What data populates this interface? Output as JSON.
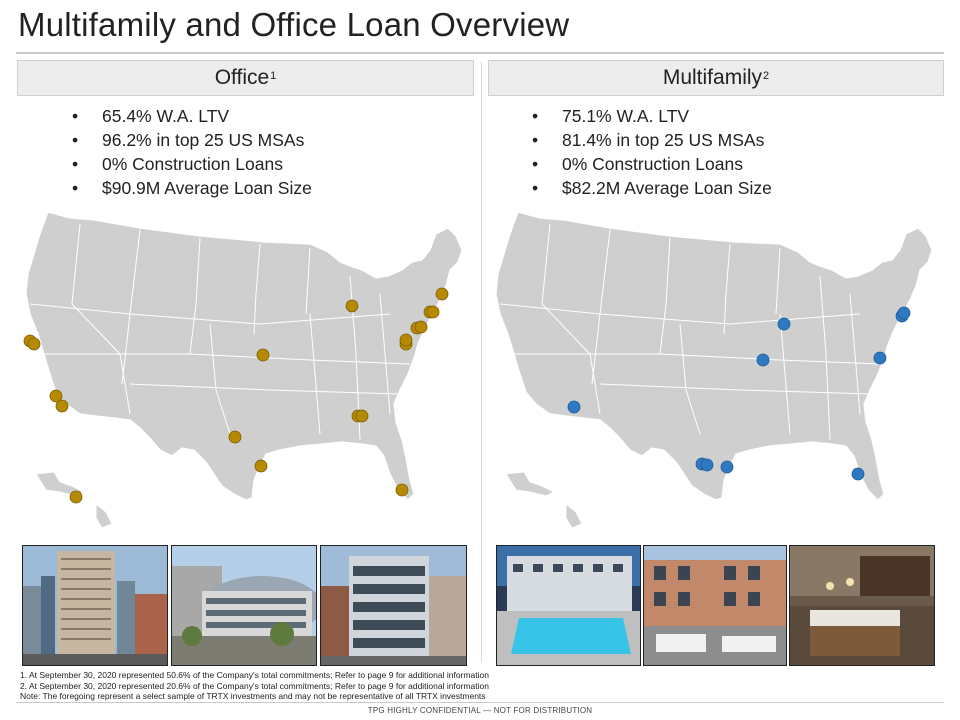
{
  "title": "Multifamily and Office Loan Overview",
  "office": {
    "header": "Office",
    "header_marker": "1",
    "bullets": [
      "65.4% W.A. LTV",
      "96.2% in top 25 US MSAs",
      "0% Construction Loans",
      "$90.9M Average Loan Size"
    ],
    "marker_color": "#b58a00"
  },
  "multifamily": {
    "header": "Multifamily",
    "header_marker": "2",
    "bullets": [
      "75.1% W.A. LTV",
      "81.4% in top 25 US MSAs",
      "0% Construction Loans",
      "$82.2M Average Loan Size"
    ],
    "marker_color": "#2f78c2"
  },
  "footnotes": [
    "1. At September 30, 2020 represented 50.6% of the Company's total commitments; Refer to page 9 for additional information",
    "2. At September 30, 2020 represented 20.6% of the Company's total commitments; Refer to page 9 for additional information",
    "Note: The foregoing represent a select sample of TRTX investments and may not be representative of all TRTX investments"
  ],
  "confidential": "TPG HIGHLY CONFIDENTIAL — NOT FOR DISTRIBUTION",
  "colors": {
    "map_land": "#cfcfcf",
    "map_border": "#ffffff",
    "header_bg": "#ededed"
  },
  "photos": {
    "office": [
      "high-rise-office-tower",
      "curved-glass-office-building",
      "modern-glass-office-building"
    ],
    "multifamily": [
      "apartment-pool-courtyard",
      "brick-apartment-courtyard",
      "apartment-kitchen-interior"
    ]
  }
}
